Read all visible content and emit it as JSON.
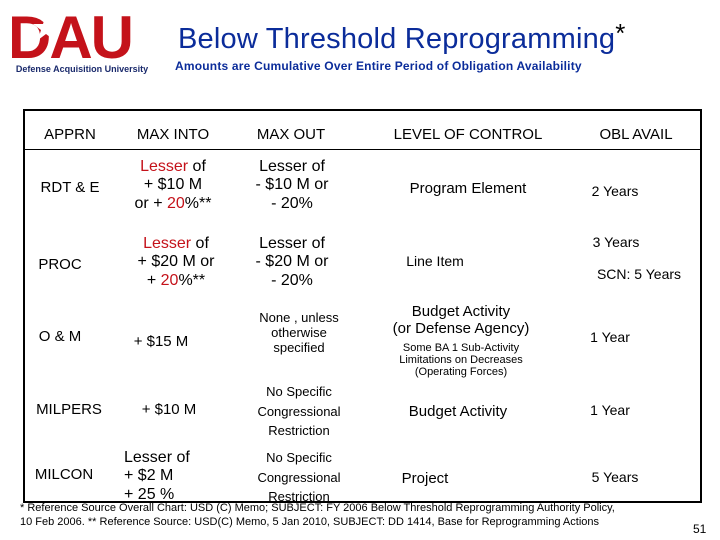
{
  "header": {
    "logo_letters": "DAU",
    "logo_caption": "Defense Acquisition University",
    "title": "Below Threshold Reprogramming",
    "title_mark": "*",
    "subtitle": "Amounts are Cumulative Over Entire Period of Obligation Availability"
  },
  "table": {
    "columns": [
      "APPRN",
      "MAX  INTO",
      "MAX  OUT",
      "LEVEL  OF  CONTROL",
      "OBL  AVAIL"
    ],
    "rows": [
      {
        "apprn": "RDT & E",
        "into": {
          "l1_red": "Lesser",
          "l1": " of",
          "l2": "+ $10 M",
          "l3_a": "or  + ",
          "l3_red": "20",
          "l3_b": "%**"
        },
        "out": {
          "l1": "Lesser of",
          "l2": "- $10 M or",
          "l3": "- 20%"
        },
        "control": "Program Element",
        "avail": "2 Years"
      },
      {
        "apprn": "PROC",
        "into": {
          "l1_red": "Lesser",
          "l1": " of",
          "l2": "+ $20 M or",
          "l3_a": "+ ",
          "l3_red": "20",
          "l3_b": "%**"
        },
        "out": {
          "l1": "Lesser of",
          "l2": "- $20 M or",
          "l3": "- 20%"
        },
        "control": "Line  Item",
        "avail": "3  Years",
        "avail_2": "SCN: 5 Years"
      },
      {
        "apprn": "O & M",
        "into": "+ $15 M",
        "out": {
          "l1": "None , unless",
          "l2": "otherwise",
          "l3": "specified"
        },
        "control": "Budget Activity",
        "control_2": "(or Defense Agency)",
        "control_note_1": "Some BA 1 Sub-Activity",
        "control_note_2": "Limitations on Decreases",
        "control_note_3": "(Operating Forces)",
        "avail": "1 Year"
      },
      {
        "apprn": "MILPERS",
        "into": "+ $10 M",
        "out": {
          "l1": "No Specific",
          "l2": "Congressional",
          "l3": "Restriction"
        },
        "control": "Budget Activity",
        "avail": "1 Year"
      },
      {
        "apprn": "MILCON",
        "into": {
          "l1": "Lesser of",
          "l2": "+ $2 M",
          "l3": "+ 25 %"
        },
        "out": {
          "l1": "No Specific",
          "l2": "Congressional",
          "l3": "Restriction"
        },
        "control": "Project",
        "avail": "5 Years"
      }
    ]
  },
  "footer": {
    "line1": "* Reference Source Overall Chart:  USD (C) Memo; SUBJECT: FY 2006 Below Threshold Reprogramming  Authority Policy,",
    "line2": "10 Feb 2006.  ** Reference Source:  USD(C) Memo, 5 Jan 2010, SUBJECT:  DD 1414, Base for Reprogramming Actions",
    "page": "51"
  },
  "colors": {
    "title": "#0b2c9a",
    "highlight": "#c4121a",
    "logo_red": "#c4121a",
    "logo_blue": "#1a2a6c"
  }
}
